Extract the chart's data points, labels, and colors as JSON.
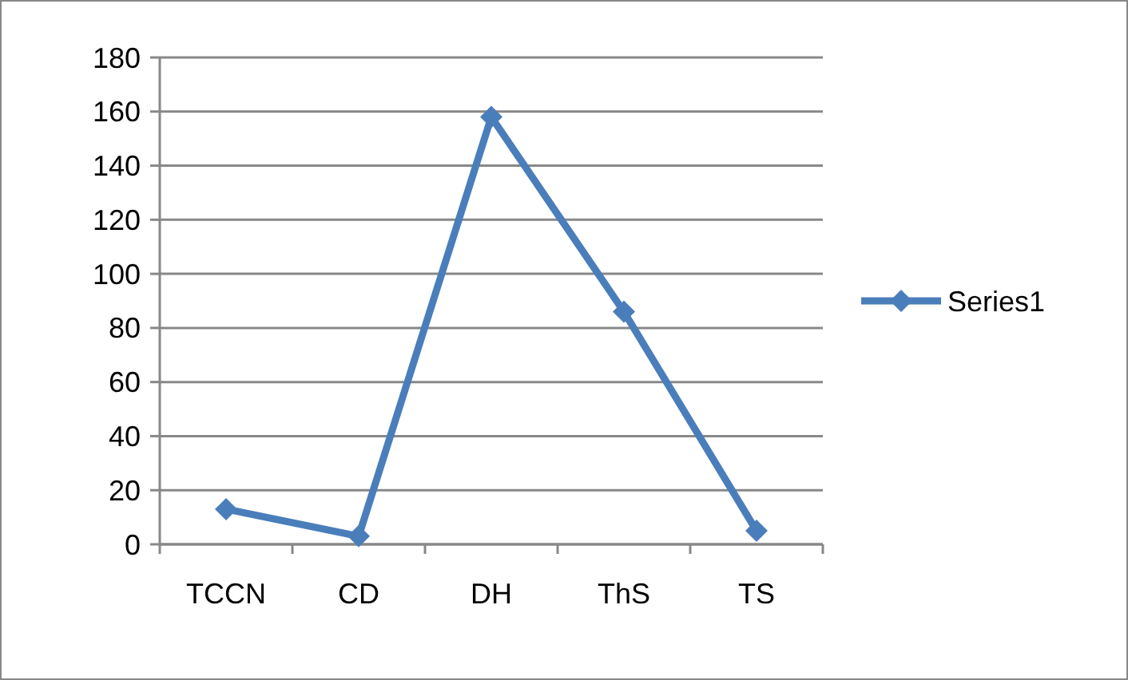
{
  "chart_data": {
    "type": "line",
    "categories": [
      "TCCN",
      "CD",
      "DH",
      "ThS",
      "TS"
    ],
    "series": [
      {
        "name": "Series1",
        "color": "#4a7ebb",
        "values": [
          13,
          3,
          158,
          86,
          5
        ]
      }
    ],
    "ylim": [
      0,
      180
    ],
    "yticks": [
      0,
      20,
      40,
      60,
      80,
      100,
      120,
      140,
      160,
      180
    ],
    "grid": "y",
    "legend": "right",
    "marker": "diamond"
  }
}
